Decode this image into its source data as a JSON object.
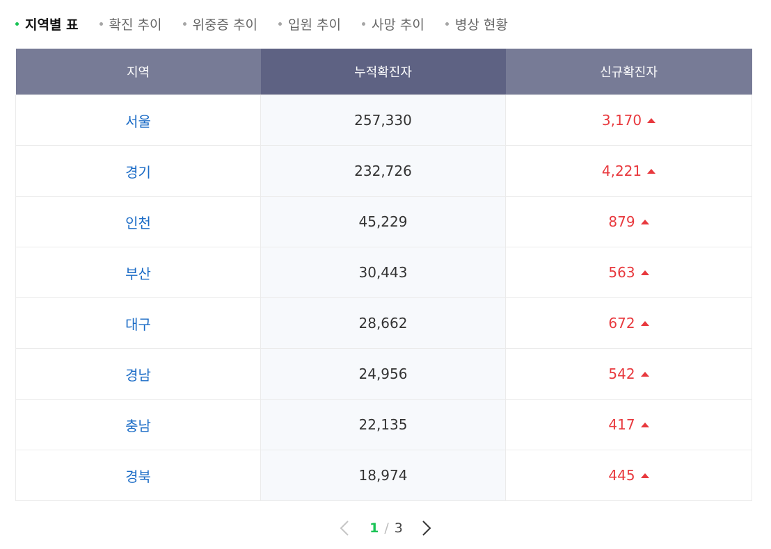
{
  "tabs": [
    {
      "label": "지역별 표",
      "active": true
    },
    {
      "label": "확진 추이",
      "active": false
    },
    {
      "label": "위중증 추이",
      "active": false
    },
    {
      "label": "입원 추이",
      "active": false
    },
    {
      "label": "사망 추이",
      "active": false
    },
    {
      "label": "병상 현황",
      "active": false
    }
  ],
  "table": {
    "headers": [
      "지역",
      "누적확진자",
      "신규확진자"
    ],
    "rows": [
      {
        "region": "서울",
        "cumulative": "257,330",
        "new": "3,170"
      },
      {
        "region": "경기",
        "cumulative": "232,726",
        "new": "4,221"
      },
      {
        "region": "인천",
        "cumulative": "45,229",
        "new": "879"
      },
      {
        "region": "부산",
        "cumulative": "30,443",
        "new": "563"
      },
      {
        "region": "대구",
        "cumulative": "28,662",
        "new": "672"
      },
      {
        "region": "경남",
        "cumulative": "24,956",
        "new": "542"
      },
      {
        "region": "충남",
        "cumulative": "22,135",
        "new": "417"
      },
      {
        "region": "경북",
        "cumulative": "18,974",
        "new": "445"
      }
    ],
    "increase_icon": "triangle-up-icon"
  },
  "pagination": {
    "current": "1",
    "separator": "/",
    "total": "3",
    "prev_icon": "chevron-left-icon",
    "next_icon": "chevron-right-icon"
  },
  "colors": {
    "active_dot": "#19c355",
    "header_bg": "#777b96",
    "header_accent_bg": "#5e6283",
    "region_text": "#1a6bc6",
    "increase": "#e8393e"
  }
}
